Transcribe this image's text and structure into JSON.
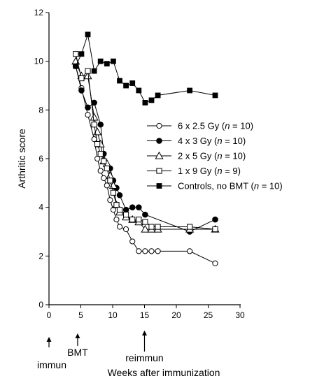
{
  "chart_data": {
    "type": "line",
    "xlabel": "Weeks after immunization",
    "ylabel": "Arthritic score",
    "xlim": [
      0,
      30
    ],
    "ylim": [
      0,
      12
    ],
    "xticks": [
      "0",
      "5",
      "10",
      "15",
      "20",
      "25",
      "30"
    ],
    "yticks": [
      "0",
      "2",
      "4",
      "6",
      "8",
      "10",
      "12"
    ],
    "grid": false,
    "legend_position": "center-right",
    "annotations": [
      {
        "label": "immun",
        "x": 0
      },
      {
        "label": "BMT",
        "x": 4.5
      },
      {
        "label": "reimmun",
        "x": 15
      }
    ],
    "series": [
      {
        "label_text": "6 x 2.5 Gy (",
        "label_n": "n",
        "label_tail": " = 10)",
        "marker": "circle-open",
        "points": [
          [
            4.2,
            9.8
          ],
          [
            5.1,
            8.9
          ],
          [
            6.1,
            7.8
          ],
          [
            7.1,
            6.8
          ],
          [
            7.6,
            6.0
          ],
          [
            8.1,
            5.5
          ],
          [
            8.6,
            5.2
          ],
          [
            9.1,
            4.9
          ],
          [
            9.6,
            4.3
          ],
          [
            10.1,
            3.9
          ],
          [
            10.6,
            3.5
          ],
          [
            11.1,
            3.2
          ],
          [
            12.1,
            3.1
          ],
          [
            13.1,
            2.6
          ],
          [
            14.1,
            2.2
          ],
          [
            15.1,
            2.2
          ],
          [
            16.1,
            2.2
          ],
          [
            17.1,
            2.2
          ],
          [
            22.1,
            2.2
          ],
          [
            26.1,
            1.7
          ]
        ]
      },
      {
        "label_text": "4 x 3 Gy (",
        "label_n": "n",
        "label_tail": " = 10)",
        "marker": "circle-filled",
        "points": [
          [
            4.2,
            9.8
          ],
          [
            5.1,
            8.8
          ],
          [
            6.1,
            8.1
          ],
          [
            7.1,
            8.3
          ],
          [
            8.1,
            7.4
          ],
          [
            8.6,
            6.2
          ],
          [
            9.1,
            5.7
          ],
          [
            9.6,
            5.6
          ],
          [
            10.1,
            5.1
          ],
          [
            10.6,
            4.8
          ],
          [
            11.1,
            4.5
          ],
          [
            12.1,
            3.9
          ],
          [
            13.1,
            4.0
          ],
          [
            14.1,
            4.0
          ],
          [
            15.1,
            3.7
          ],
          [
            22.1,
            3.0
          ],
          [
            26.1,
            3.5
          ]
        ]
      },
      {
        "label_text": "2 x 5 Gy (",
        "label_n": "n",
        "label_tail": " = 10)",
        "marker": "triangle-open",
        "points": [
          [
            4.2,
            10.0
          ],
          [
            5.1,
            9.4
          ],
          [
            6.1,
            9.4
          ],
          [
            7.1,
            7.7
          ],
          [
            7.6,
            7.1
          ],
          [
            8.1,
            6.6
          ],
          [
            8.6,
            5.9
          ],
          [
            9.1,
            5.8
          ],
          [
            9.6,
            5.3
          ],
          [
            10.1,
            4.9
          ],
          [
            10.6,
            4.1
          ],
          [
            11.1,
            3.8
          ],
          [
            12.1,
            3.6
          ],
          [
            13.1,
            3.5
          ],
          [
            14.1,
            3.4
          ],
          [
            15.1,
            3.1
          ],
          [
            16.1,
            3.1
          ],
          [
            17.1,
            3.1
          ],
          [
            22.1,
            3.1
          ],
          [
            26.1,
            3.1
          ]
        ]
      },
      {
        "label_text": "1 x 9 Gy (",
        "label_n": "n",
        "label_tail": " = 9)",
        "marker": "square-open",
        "points": [
          [
            4.2,
            10.3
          ],
          [
            5.1,
            9.3
          ],
          [
            6.1,
            9.6
          ],
          [
            7.1,
            7.4
          ],
          [
            7.6,
            6.6
          ],
          [
            8.1,
            6.2
          ],
          [
            8.6,
            5.9
          ],
          [
            9.1,
            5.6
          ],
          [
            9.6,
            5.1
          ],
          [
            10.1,
            4.6
          ],
          [
            10.6,
            4.1
          ],
          [
            11.1,
            3.9
          ],
          [
            12.1,
            3.7
          ],
          [
            13.1,
            3.5
          ],
          [
            14.1,
            3.5
          ],
          [
            15.1,
            3.4
          ],
          [
            16.1,
            3.2
          ],
          [
            17.1,
            3.2
          ],
          [
            22.1,
            3.2
          ],
          [
            26.1,
            3.1
          ]
        ]
      },
      {
        "label_text": "Controls, no BMT (",
        "label_n": "n",
        "label_tail": " = 10)",
        "marker": "square-filled",
        "points": [
          [
            4.2,
            9.8
          ],
          [
            5.1,
            10.3
          ],
          [
            6.1,
            11.1
          ],
          [
            7.1,
            9.6
          ],
          [
            8.1,
            10.0
          ],
          [
            9.1,
            9.9
          ],
          [
            10.1,
            10.0
          ],
          [
            11.1,
            9.2
          ],
          [
            12.1,
            9.0
          ],
          [
            13.1,
            9.1
          ],
          [
            14.1,
            8.8
          ],
          [
            15.1,
            8.3
          ],
          [
            16.1,
            8.4
          ],
          [
            17.1,
            8.6
          ],
          [
            22.1,
            8.8
          ],
          [
            26.1,
            8.6
          ]
        ]
      }
    ]
  }
}
